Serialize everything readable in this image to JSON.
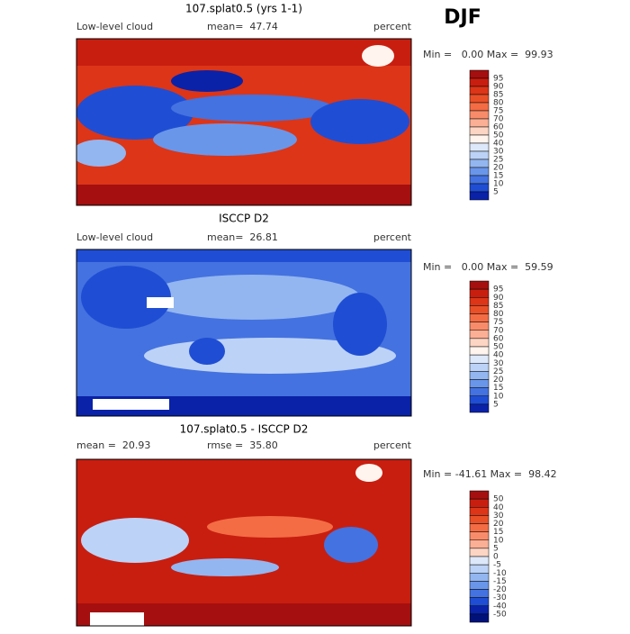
{
  "season": "DJF",
  "panels": [
    {
      "title": "107.splat0.5 (yrs 1-1)",
      "left": "Low-level cloud",
      "middle": "mean=  47.74",
      "units": "percent",
      "range": "Min =   0.00 Max =  99.93",
      "colorbar": {
        "levels": [
          "95",
          "90",
          "85",
          "80",
          "75",
          "70",
          "60",
          "50",
          "40",
          "30",
          "25",
          "20",
          "15",
          "10",
          "5"
        ],
        "colors": [
          "#a50f0f",
          "#c81e10",
          "#dc3518",
          "#ea5028",
          "#f46c44",
          "#f88c6a",
          "#fbaf95",
          "#fdd5c4",
          "#fff4ee",
          "#dde8fa",
          "#bcd2f6",
          "#93b6f0",
          "#6a96ea",
          "#4472e0",
          "#1f4ed4",
          "#0a22a8"
        ]
      }
    },
    {
      "title": "ISCCP D2",
      "left": "Low-level cloud",
      "middle": "mean=  26.81",
      "units": "percent",
      "range": "Min =   0.00 Max =  59.59",
      "colorbar": {
        "levels": [
          "95",
          "90",
          "85",
          "80",
          "75",
          "70",
          "60",
          "50",
          "40",
          "30",
          "25",
          "20",
          "15",
          "10",
          "5"
        ],
        "colors": [
          "#a50f0f",
          "#c81e10",
          "#dc3518",
          "#ea5028",
          "#f46c44",
          "#f88c6a",
          "#fbaf95",
          "#fdd5c4",
          "#fff4ee",
          "#dde8fa",
          "#bcd2f6",
          "#93b6f0",
          "#6a96ea",
          "#4472e0",
          "#1f4ed4",
          "#0a22a8"
        ]
      }
    },
    {
      "title": "107.splat0.5 - ISCCP D2",
      "left": "mean =  20.93",
      "middle": "rmse =  35.80",
      "units": "percent",
      "range": "Min = -41.61 Max =  98.42",
      "colorbar": {
        "levels": [
          "50",
          "40",
          "30",
          "20",
          "15",
          "10",
          "5",
          "0",
          "-5",
          "-10",
          "-15",
          "-20",
          "-30",
          "-40",
          "-50"
        ],
        "colors": [
          "#a50f0f",
          "#c81e10",
          "#dc3518",
          "#ea5028",
          "#f46c44",
          "#f88c6a",
          "#fbaf95",
          "#fdd5c4",
          "#dde8fa",
          "#bcd2f6",
          "#93b6f0",
          "#6a96ea",
          "#4472e0",
          "#1f4ed4",
          "#0a22a8",
          "#00127a"
        ]
      }
    }
  ]
}
